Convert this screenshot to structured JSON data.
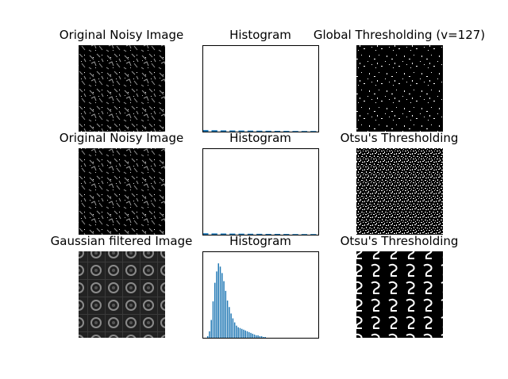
{
  "figure": {
    "background": "#ffffff",
    "histogram_color": "#1f77b4",
    "image_colors": {
      "dark": "#000000",
      "light": "#ffffff",
      "mid": "#6e6e6e"
    }
  },
  "rows": [
    {
      "image_title": "Original Noisy Image",
      "hist_title": "Histogram",
      "result_title": "Global Thresholding (v=127)"
    },
    {
      "image_title": "Original Noisy Image",
      "hist_title": "Histogram",
      "result_title": "Otsu's Thresholding"
    },
    {
      "image_title": "Gaussian filtered Image",
      "hist_title": "Histogram",
      "result_title": "Otsu's Thresholding"
    }
  ],
  "chart_data": [
    {
      "type": "bar",
      "title": "Histogram",
      "xlim": [
        0,
        256
      ],
      "ylim": [
        0,
        100
      ],
      "axes_ticks": "off",
      "x": [
        5,
        25,
        45,
        65,
        85,
        105,
        125,
        145,
        165,
        185,
        205,
        225,
        245
      ],
      "values": [
        2.0,
        1.8,
        1.6,
        1.5,
        1.4,
        1.3,
        1.2,
        1.1,
        1.0,
        0.9,
        0.8,
        0.6,
        0.4
      ]
    },
    {
      "type": "bar",
      "title": "Histogram",
      "xlim": [
        0,
        256
      ],
      "ylim": [
        0,
        100
      ],
      "axes_ticks": "off",
      "x": [
        5,
        25,
        45,
        65,
        85,
        105,
        125,
        145,
        165,
        185,
        205,
        225,
        245
      ],
      "values": [
        1.8,
        1.6,
        1.5,
        1.4,
        1.3,
        1.2,
        1.1,
        1.0,
        1.0,
        0.9,
        0.8,
        0.7,
        0.5
      ]
    },
    {
      "type": "bar",
      "title": "Histogram",
      "xlim": [
        0,
        256
      ],
      "ylim": [
        0,
        100
      ],
      "axes_ticks": "off",
      "x": [
        10,
        14,
        18,
        22,
        26,
        30,
        34,
        38,
        42,
        46,
        50,
        54,
        58,
        62,
        66,
        70,
        74,
        78,
        82,
        86,
        90,
        94,
        98,
        102,
        106,
        110,
        114,
        118,
        122,
        126,
        130,
        134,
        138
      ],
      "values": [
        2,
        8,
        22,
        45,
        68,
        82,
        92,
        88,
        80,
        70,
        58,
        46,
        38,
        30,
        24,
        19,
        15,
        13,
        12,
        11,
        10,
        9,
        8,
        7,
        6,
        5,
        4,
        3,
        3,
        2,
        2,
        1,
        1
      ]
    }
  ]
}
